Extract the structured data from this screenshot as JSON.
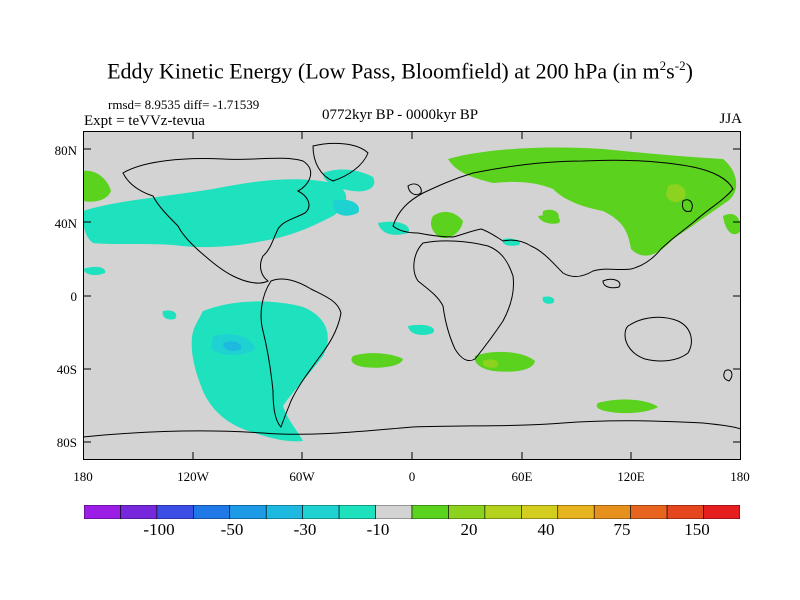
{
  "title": "Eddy Kinetic Energy (Low Pass, Bloomfield) at 200 hPa (in m",
  "title_sup1": "2",
  "title_mid": "s",
  "title_sup2": "-2",
  "title_end": ")",
  "stats_line": "rmsd= 8.9535 diff= -1.71539",
  "experiment": "Expt = teVVz-tevua",
  "period": "0772kyr BP - 0000kyr BP",
  "season": "JJA",
  "map": {
    "background_color": "#d3d3d3",
    "latitude_labels": [
      "80N",
      "40N",
      "0",
      "40S",
      "80S"
    ],
    "longitude_labels": [
      "180",
      "120W",
      "60W",
      "0",
      "60E",
      "120E",
      "180"
    ]
  },
  "colorbar": {
    "colors": [
      "#9c1ee6",
      "#7828dc",
      "#3c4ee6",
      "#1e78e6",
      "#1e9be6",
      "#1eb9e1",
      "#1ed2d2",
      "#1ee1be",
      "#d3d3d3",
      "#5ad21e",
      "#8cd21e",
      "#b4d21e",
      "#d2cd1e",
      "#e6b41e",
      "#e6911e",
      "#e6641e",
      "#e6461e",
      "#e61e1e"
    ],
    "labels": [
      "-100",
      "-50",
      "-30",
      "-10",
      "20",
      "40",
      "75",
      "150"
    ]
  }
}
